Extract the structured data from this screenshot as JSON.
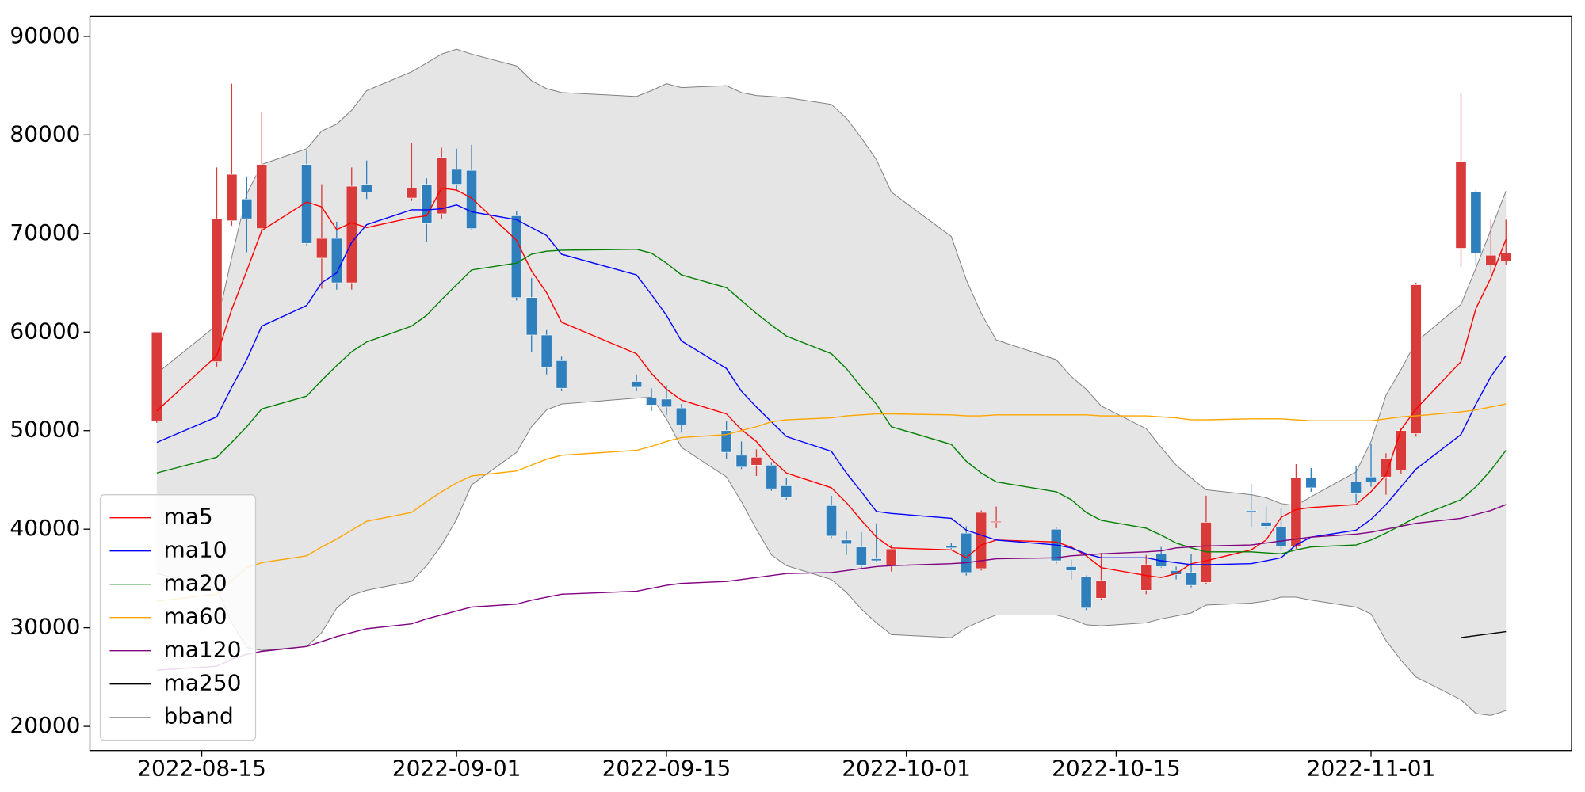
{
  "chart_data": {
    "type": "candlestick",
    "x": [
      "2022-08-12",
      "2022-08-16",
      "2022-08-17",
      "2022-08-18",
      "2022-08-19",
      "2022-08-22",
      "2022-08-23",
      "2022-08-24",
      "2022-08-25",
      "2022-08-26",
      "2022-08-29",
      "2022-08-30",
      "2022-08-31",
      "2022-09-01",
      "2022-09-02",
      "2022-09-05",
      "2022-09-06",
      "2022-09-07",
      "2022-09-08",
      "2022-09-13",
      "2022-09-14",
      "2022-09-15",
      "2022-09-16",
      "2022-09-19",
      "2022-09-20",
      "2022-09-21",
      "2022-09-22",
      "2022-09-23",
      "2022-09-26",
      "2022-09-27",
      "2022-09-28",
      "2022-09-29",
      "2022-09-30",
      "2022-10-04",
      "2022-10-05",
      "2022-10-06",
      "2022-10-07",
      "2022-10-11",
      "2022-10-12",
      "2022-10-13",
      "2022-10-14",
      "2022-10-17",
      "2022-10-18",
      "2022-10-19",
      "2022-10-20",
      "2022-10-21",
      "2022-10-24",
      "2022-10-25",
      "2022-10-26",
      "2022-10-27",
      "2022-10-28",
      "2022-10-31",
      "2022-11-01",
      "2022-11-02",
      "2022-11-03",
      "2022-11-04",
      "2022-11-07",
      "2022-11-08",
      "2022-11-09",
      "2022-11-10"
    ],
    "open": [
      51000,
      57000,
      71300,
      73500,
      70500,
      77000,
      67500,
      69500,
      65000,
      75000,
      73600,
      75000,
      72000,
      76500,
      76400,
      71800,
      63500,
      59700,
      57100,
      55000,
      53300,
      53200,
      52300,
      50000,
      47500,
      46500,
      46500,
      44400,
      42400,
      38900,
      38200,
      37000,
      36300,
      38300,
      39600,
      36000,
      40700,
      40000,
      36200,
      35200,
      33000,
      33800,
      37500,
      35800,
      35600,
      34600,
      41900,
      40700,
      40200,
      38300,
      45200,
      44800,
      45300,
      45300,
      46000,
      49700,
      68500,
      74200,
      66800,
      67200
    ],
    "high": [
      60000,
      76700,
      85200,
      75800,
      82300,
      78400,
      75000,
      71200,
      76700,
      77400,
      79200,
      75600,
      78700,
      78600,
      79000,
      72300,
      65500,
      60200,
      57500,
      55700,
      54300,
      54600,
      52700,
      51000,
      48900,
      48100,
      46800,
      45200,
      43400,
      39800,
      39700,
      40600,
      38400,
      38600,
      40300,
      41900,
      42300,
      40200,
      36900,
      35300,
      37600,
      37400,
      38200,
      36200,
      37500,
      43400,
      44600,
      42300,
      42100,
      46600,
      46200,
      46400,
      48700,
      47700,
      50300,
      65000,
      84300,
      74400,
      71400,
      71400
    ],
    "low": [
      50800,
      56500,
      70800,
      68100,
      70300,
      68800,
      64400,
      64300,
      64300,
      73500,
      73300,
      69100,
      71500,
      74300,
      70400,
      63200,
      58000,
      55700,
      54000,
      54000,
      52000,
      51600,
      49800,
      47100,
      46100,
      45400,
      43900,
      43000,
      39100,
      37400,
      36000,
      36700,
      35700,
      38000,
      35300,
      35800,
      40100,
      36500,
      34900,
      31800,
      32800,
      33400,
      36100,
      34900,
      34100,
      34400,
      40200,
      40000,
      37800,
      38000,
      43800,
      42700,
      44300,
      43500,
      45600,
      49400,
      66600,
      66800,
      66000,
      66800
    ],
    "close": [
      60000,
      71500,
      76000,
      71500,
      77000,
      69000,
      69500,
      65000,
      74800,
      74200,
      74600,
      71000,
      77700,
      75000,
      70500,
      63500,
      59700,
      56400,
      54300,
      54400,
      52600,
      52400,
      50600,
      47800,
      46300,
      47300,
      44100,
      43200,
      39300,
      38500,
      36300,
      36800,
      38000,
      38100,
      35600,
      41700,
      40800,
      36800,
      35800,
      32000,
      34800,
      36400,
      36200,
      35400,
      34300,
      40700,
      41800,
      40300,
      38300,
      45200,
      44200,
      43600,
      44800,
      47200,
      50000,
      64800,
      77300,
      68000,
      67800,
      68000
    ],
    "up_color": "#d93a3a",
    "down_color": "#2f7fbd",
    "series": [
      {
        "name": "ma5",
        "color": "red",
        "values": [
          52000,
          57600,
          62300,
          66200,
          70300,
          73200,
          72700,
          70400,
          71100,
          70600,
          71600,
          71800,
          74600,
          74400,
          73600,
          69300,
          66200,
          64000,
          61000,
          57800,
          55800,
          54200,
          53100,
          51700,
          50100,
          48900,
          47100,
          45700,
          44200,
          42700,
          40900,
          39200,
          38100,
          37900,
          37100,
          38400,
          38900,
          38700,
          38200,
          37300,
          36100,
          35300,
          35100,
          35500,
          36500,
          36800,
          37900,
          38900,
          41200,
          42000,
          42200,
          42500,
          43800,
          45500,
          50100,
          52200,
          57000,
          62400,
          65500,
          69400
        ]
      },
      {
        "name": "ma10",
        "color": "blue",
        "values": [
          48800,
          51400,
          54400,
          57200,
          60600,
          62700,
          65000,
          66000,
          69100,
          70900,
          72400,
          72400,
          72500,
          72900,
          72200,
          71400,
          70600,
          69800,
          67900,
          65800,
          63800,
          61700,
          59100,
          56300,
          54000,
          52400,
          50900,
          49400,
          47900,
          45700,
          43800,
          41800,
          41600,
          41100,
          39900,
          39400,
          38900,
          38400,
          38100,
          37500,
          37100,
          37100,
          36800,
          36600,
          36400,
          36400,
          36500,
          36800,
          37100,
          38400,
          39200,
          39900,
          41000,
          42500,
          44300,
          46100,
          49600,
          52700,
          55500,
          57600
        ]
      },
      {
        "name": "ma20",
        "color": "green",
        "values": [
          45700,
          47300,
          48800,
          50400,
          52200,
          53500,
          55100,
          56600,
          58000,
          59000,
          60600,
          61700,
          63300,
          64800,
          66300,
          67000,
          67900,
          68200,
          68300,
          68400,
          68000,
          67000,
          65800,
          64500,
          63200,
          61900,
          60700,
          59600,
          57800,
          56300,
          54400,
          52700,
          50400,
          48600,
          46900,
          45700,
          44800,
          43800,
          43000,
          41700,
          40900,
          40100,
          39400,
          38600,
          38100,
          37700,
          37700,
          37600,
          37500,
          37900,
          38200,
          38400,
          38900,
          39600,
          40400,
          41200,
          43000,
          44300,
          46000,
          48000
        ]
      },
      {
        "name": "ma60",
        "color": "orange",
        "values": [
          32700,
          33400,
          34800,
          36100,
          36600,
          37300,
          38200,
          39000,
          39900,
          40800,
          41700,
          42800,
          43800,
          44700,
          45400,
          45900,
          46500,
          47100,
          47500,
          48000,
          48400,
          48900,
          49300,
          49600,
          50000,
          50400,
          50900,
          51100,
          51300,
          51500,
          51600,
          51700,
          51700,
          51600,
          51500,
          51500,
          51600,
          51600,
          51600,
          51600,
          51500,
          51500,
          51400,
          51300,
          51100,
          51100,
          51200,
          51200,
          51200,
          51100,
          51000,
          51000,
          51000,
          51200,
          51400,
          51500,
          51900,
          52100,
          52400,
          52700
        ]
      },
      {
        "name": "ma120",
        "color": "purple",
        "values": [
          25700,
          26100,
          26800,
          27300,
          27600,
          28100,
          28600,
          29100,
          29500,
          29900,
          30400,
          30900,
          31300,
          31700,
          32100,
          32400,
          32800,
          33100,
          33400,
          33700,
          34000,
          34300,
          34500,
          34700,
          34900,
          35100,
          35300,
          35500,
          35600,
          35800,
          36000,
          36200,
          36300,
          36500,
          36600,
          36800,
          37000,
          37100,
          37300,
          37400,
          37500,
          37700,
          37800,
          38100,
          38200,
          38300,
          38400,
          38600,
          38800,
          39000,
          39200,
          39500,
          39700,
          40000,
          40300,
          40600,
          41100,
          41500,
          41900,
          42500
        ]
      },
      {
        "name": "ma250",
        "color": "black",
        "values": [
          null,
          null,
          null,
          null,
          null,
          null,
          null,
          null,
          null,
          null,
          null,
          null,
          null,
          null,
          null,
          null,
          null,
          null,
          null,
          null,
          null,
          null,
          null,
          null,
          null,
          null,
          null,
          null,
          null,
          null,
          null,
          null,
          null,
          null,
          null,
          null,
          null,
          null,
          null,
          null,
          null,
          null,
          null,
          null,
          null,
          null,
          null,
          null,
          null,
          null,
          null,
          null,
          null,
          null,
          null,
          null,
          29000,
          29200,
          29400,
          29600
        ]
      },
      {
        "name": "bband",
        "color": "gray",
        "fill": "#e5e5e5",
        "upper": [
          55800,
          60700,
          67600,
          74000,
          77000,
          78600,
          80400,
          81100,
          82500,
          84500,
          86400,
          87300,
          88200,
          88700,
          88200,
          87000,
          85500,
          84700,
          84300,
          83900,
          84500,
          85200,
          84800,
          85000,
          84300,
          84000,
          83900,
          83800,
          83100,
          81700,
          79700,
          77500,
          74200,
          69700,
          65300,
          61900,
          59200,
          57200,
          55500,
          54200,
          52500,
          50200,
          48300,
          46500,
          45200,
          44000,
          43500,
          43200,
          42600,
          42400,
          43300,
          45800,
          48900,
          53600,
          56200,
          59000,
          62800,
          66500,
          70400,
          74300
        ],
        "lower": [
          35500,
          34000,
          30500,
          28000,
          27700,
          28100,
          29500,
          32000,
          33300,
          33800,
          34700,
          36300,
          38400,
          41000,
          44500,
          47800,
          50400,
          52100,
          52700,
          53300,
          53400,
          51200,
          48300,
          45300,
          42800,
          40000,
          37400,
          36300,
          34900,
          33600,
          31900,
          30500,
          29300,
          29000,
          30000,
          30700,
          31300,
          31300,
          30900,
          30300,
          30200,
          30500,
          30900,
          31200,
          31500,
          32300,
          32500,
          32700,
          33100,
          33100,
          32800,
          32100,
          31400,
          28700,
          26700,
          25000,
          22700,
          21300,
          21100,
          21600
        ]
      }
    ],
    "xlim": [
      "2022-08-07T13:00",
      "2022-11-14T09:00"
    ],
    "xticks": [
      "2022-08-15",
      "2022-09-01",
      "2022-09-15",
      "2022-10-01",
      "2022-10-15",
      "2022-11-01"
    ],
    "ylim": [
      17540,
      92050
    ],
    "yticks": [
      20000,
      30000,
      40000,
      50000,
      60000,
      70000,
      80000,
      90000
    ],
    "legend": "lower left"
  }
}
